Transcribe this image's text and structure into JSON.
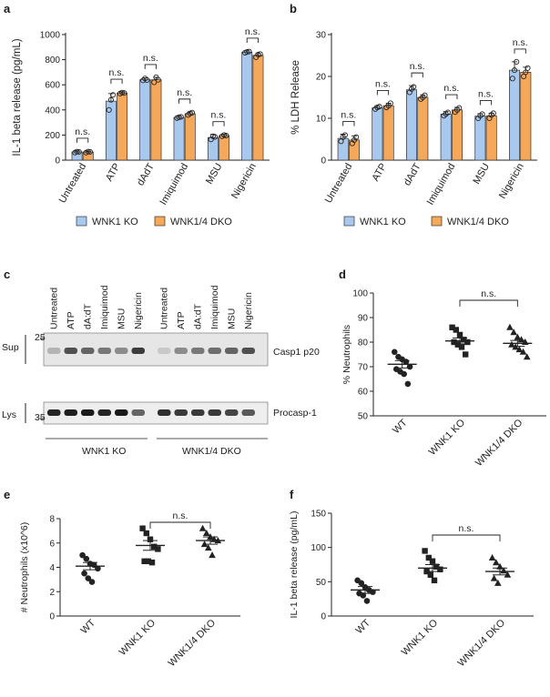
{
  "panel_labels": {
    "a": "a",
    "b": "b",
    "c": "c",
    "d": "d",
    "e": "e",
    "f": "f"
  },
  "colors": {
    "wnk1_ko": "#a9c8ee",
    "wnk1_4_dko": "#f5a85a",
    "dot": "#222222"
  },
  "chart_data": [
    {
      "id": "a",
      "type": "bar",
      "ylabel": "IL-1 beta release (pg/mL)",
      "ylim": [
        0,
        1000
      ],
      "yticks": [
        0,
        200,
        400,
        600,
        800,
        1000
      ],
      "categories": [
        "Untreated",
        "ATP",
        "dAdT",
        "Imiquimod",
        "MSU",
        "Nigericin"
      ],
      "series": [
        {
          "name": "WNK1 KO",
          "values": [
            65,
            470,
            640,
            340,
            180,
            860
          ],
          "err": [
            8,
            60,
            15,
            10,
            25,
            10
          ],
          "points": [
            [
              60,
              68,
              66
            ],
            [
              400,
              480,
              520
            ],
            [
              635,
              650,
              638
            ],
            [
              335,
              342,
              345
            ],
            [
              165,
              190,
              185
            ],
            [
              855,
              862,
              865
            ]
          ]
        },
        {
          "name": "WNK1/4 DKO",
          "values": [
            65,
            535,
            640,
            370,
            195,
            835
          ],
          "err": [
            6,
            8,
            20,
            15,
            10,
            15
          ],
          "points": [
            [
              60,
              68,
              66
            ],
            [
              530,
              538,
              535
            ],
            [
              620,
              660,
              640
            ],
            [
              360,
              372,
              378
            ],
            [
              190,
              200,
              195
            ],
            [
              820,
              840,
              845
            ]
          ]
        }
      ],
      "annotations": [
        "n.s.",
        "n.s.",
        "n.s.",
        "n.s.",
        "n.s.",
        "n.s."
      ],
      "legend": [
        "WNK1 KO",
        "WNK1/4 DKO"
      ],
      "legend_position": "bottom"
    },
    {
      "id": "b",
      "type": "bar",
      "ylabel": "% LDH Release",
      "ylim": [
        0,
        30
      ],
      "yticks": [
        0,
        10,
        20,
        30
      ],
      "categories": [
        "Untreated",
        "ATP",
        "dAdT",
        "Imiquimod",
        "MSU",
        "Nigericin"
      ],
      "series": [
        {
          "name": "WNK1 KO",
          "values": [
            5.2,
            12.5,
            16.8,
            11.0,
            10.5,
            21.5
          ],
          "err": [
            1.0,
            0.5,
            1.0,
            0.6,
            0.6,
            2.0
          ],
          "points": [
            [
              4.5,
              5.5,
              6.0
            ],
            [
              12.2,
              12.6,
              12.8
            ],
            [
              16.2,
              17.0,
              17.5
            ],
            [
              10.6,
              11.0,
              11.4
            ],
            [
              10.0,
              10.6,
              11.0
            ],
            [
              19.5,
              21.5,
              23.5
            ]
          ]
        },
        {
          "name": "WNK1/4 DKO",
          "values": [
            4.8,
            13.0,
            15.0,
            12.0,
            10.6,
            21.0
          ],
          "err": [
            1.0,
            0.6,
            0.6,
            0.6,
            0.6,
            1.2
          ],
          "points": [
            [
              4.0,
              4.8,
              5.5
            ],
            [
              12.6,
              13.0,
              13.6
            ],
            [
              14.6,
              15.0,
              15.5
            ],
            [
              11.5,
              12.0,
              12.5
            ],
            [
              10.0,
              10.8,
              11.2
            ],
            [
              20.0,
              21.0,
              22.0
            ]
          ]
        }
      ],
      "annotations": [
        "n.s.",
        "n.s.",
        "n.s.",
        "n.s.",
        "n.s.",
        "n.s."
      ],
      "legend": [
        "WNK1 KO",
        "WNK1/4 DKO"
      ],
      "legend_position": "bottom"
    },
    {
      "id": "d",
      "type": "scatter",
      "ylabel": "% Neutrophils",
      "ylim": [
        50,
        100
      ],
      "yticks": [
        50,
        60,
        70,
        80,
        90,
        100
      ],
      "categories": [
        "WT",
        "WNK1 KO",
        "WNK1/4 DKO"
      ],
      "markers": [
        "circle",
        "square",
        "triangle"
      ],
      "points": [
        [
          76,
          74,
          73,
          72,
          70,
          69,
          68,
          67,
          63
        ],
        [
          86,
          85,
          83,
          81,
          80,
          80,
          79,
          78,
          75
        ],
        [
          86,
          84,
          82,
          81,
          80,
          79,
          78,
          77,
          76,
          74
        ]
      ],
      "mean": [
        71,
        80.5,
        79.5
      ],
      "sem": [
        1.5,
        1.2,
        1.2
      ],
      "annotation": "n.s."
    },
    {
      "id": "e",
      "type": "scatter",
      "ylabel": "# Neutrophils (x10^6)",
      "ylim": [
        0,
        8
      ],
      "yticks": [
        0,
        2,
        4,
        6,
        8
      ],
      "categories": [
        "WT",
        "WNK1 KO",
        "WNK1/4 DKO"
      ],
      "markers": [
        "circle",
        "square",
        "triangle"
      ],
      "points": [
        [
          5.0,
          4.7,
          4.3,
          4.2,
          3.9,
          3.5,
          3.1,
          2.8
        ],
        [
          7.2,
          6.8,
          6.3,
          5.7,
          5.5,
          4.5,
          4.5,
          4.4
        ],
        [
          7.2,
          6.8,
          6.5,
          6.3,
          6.2,
          5.9,
          5.6,
          5.0
        ]
      ],
      "mean": [
        4.1,
        5.8,
        6.2
      ],
      "sem": [
        0.3,
        0.4,
        0.3
      ],
      "annotation": "n.s."
    },
    {
      "id": "f",
      "type": "scatter",
      "ylabel": "IL-1 beta release (pg/mL)",
      "ylim": [
        0,
        150
      ],
      "yticks": [
        0,
        50,
        100,
        150
      ],
      "categories": [
        "WT",
        "WNK1 KO",
        "WNK1/4 DKO"
      ],
      "markers": [
        "circle",
        "square",
        "triangle"
      ],
      "points": [
        [
          52,
          48,
          42,
          38,
          35,
          33,
          30,
          22
        ],
        [
          95,
          85,
          80,
          72,
          68,
          65,
          60,
          52
        ],
        [
          85,
          78,
          72,
          66,
          60,
          55,
          48
        ]
      ],
      "mean": [
        38,
        70,
        65
      ],
      "sem": [
        5,
        5,
        5
      ],
      "annotation": "n.s."
    }
  ],
  "blot": {
    "lanes": [
      "Untreated",
      "ATP",
      "dA:dT",
      "Imiquimod",
      "MSU",
      "Nigericin",
      "Untreated",
      "ATP",
      "dA:dT",
      "Imiquimod",
      "MSU",
      "Nigericin"
    ],
    "sup_label": "Sup",
    "lys_label": "Lys",
    "sup_marker": "25",
    "lys_marker": "35",
    "sup_band": "Casp1 p20",
    "lys_band": "Procasp-1",
    "group1": "WNK1 KO",
    "group2": "WNK1/4 DKO",
    "sup_intensity": [
      0.25,
      0.75,
      0.65,
      0.55,
      0.45,
      0.85,
      0.15,
      0.45,
      0.55,
      0.6,
      0.65,
      0.75
    ],
    "lys_intensity": [
      0.9,
      0.92,
      0.95,
      0.9,
      0.95,
      0.6,
      0.85,
      0.8,
      0.8,
      0.8,
      0.75,
      0.65
    ]
  }
}
